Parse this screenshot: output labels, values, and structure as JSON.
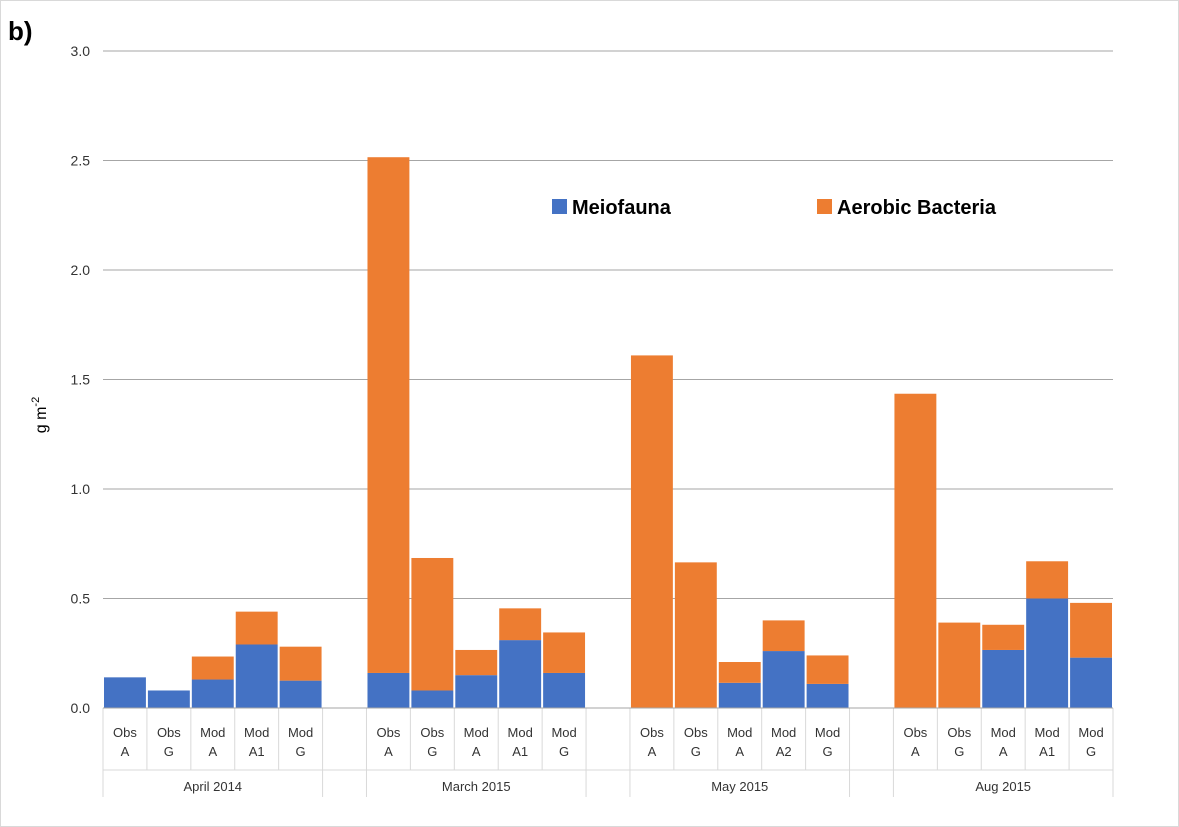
{
  "panel_label": "b)",
  "chart_data": {
    "type": "bar",
    "stacked": true,
    "ylabel": "g m",
    "ylabel_sup": "-2",
    "ylim": [
      0,
      3.0
    ],
    "yticks": [
      "0.0",
      "0.5",
      "1.0",
      "1.5",
      "2.0",
      "2.5",
      "3.0"
    ],
    "grid": true,
    "legend_position": "top-right",
    "series": [
      {
        "name": "Meiofauna",
        "color": "#4472c4"
      },
      {
        "name": "Aerobic Bacteria",
        "color": "#ed7d31"
      }
    ],
    "groups": [
      {
        "label": "April 2014",
        "bars": [
          {
            "line1": "Obs",
            "line2": "A",
            "values": [
              0.14,
              0.0
            ]
          },
          {
            "line1": "Obs",
            "line2": "G",
            "values": [
              0.08,
              0.0
            ]
          },
          {
            "line1": "Mod",
            "line2": "A",
            "values": [
              0.13,
              0.105
            ]
          },
          {
            "line1": "Mod",
            "line2": "A1",
            "values": [
              0.29,
              0.15
            ]
          },
          {
            "line1": "Mod",
            "line2": "G",
            "values": [
              0.125,
              0.155
            ]
          }
        ]
      },
      {
        "label": "March 2015",
        "bars": [
          {
            "line1": "Obs",
            "line2": "A",
            "values": [
              0.16,
              2.355
            ]
          },
          {
            "line1": "Obs",
            "line2": "G",
            "values": [
              0.08,
              0.605
            ]
          },
          {
            "line1": "Mod",
            "line2": "A",
            "values": [
              0.15,
              0.115
            ]
          },
          {
            "line1": "Mod",
            "line2": "A1",
            "values": [
              0.31,
              0.145
            ]
          },
          {
            "line1": "Mod",
            "line2": "G",
            "values": [
              0.16,
              0.185
            ]
          }
        ]
      },
      {
        "label": "May 2015",
        "bars": [
          {
            "line1": "Obs",
            "line2": "A",
            "values": [
              0.0,
              1.61
            ]
          },
          {
            "line1": "Obs",
            "line2": "G",
            "values": [
              0.0,
              0.665
            ]
          },
          {
            "line1": "Mod",
            "line2": "A",
            "values": [
              0.115,
              0.095
            ]
          },
          {
            "line1": "Mod",
            "line2": "A2",
            "values": [
              0.26,
              0.14
            ]
          },
          {
            "line1": "Mod",
            "line2": "G",
            "values": [
              0.11,
              0.13
            ]
          }
        ]
      },
      {
        "label": "Aug 2015",
        "bars": [
          {
            "line1": "Obs",
            "line2": "A",
            "values": [
              0.0,
              1.435
            ]
          },
          {
            "line1": "Obs",
            "line2": "G",
            "values": [
              0.0,
              0.39
            ]
          },
          {
            "line1": "Mod",
            "line2": "A",
            "values": [
              0.265,
              0.115
            ]
          },
          {
            "line1": "Mod",
            "line2": "A1",
            "values": [
              0.5,
              0.17
            ]
          },
          {
            "line1": "Mod",
            "line2": "G",
            "values": [
              0.23,
              0.25
            ]
          }
        ]
      }
    ]
  }
}
